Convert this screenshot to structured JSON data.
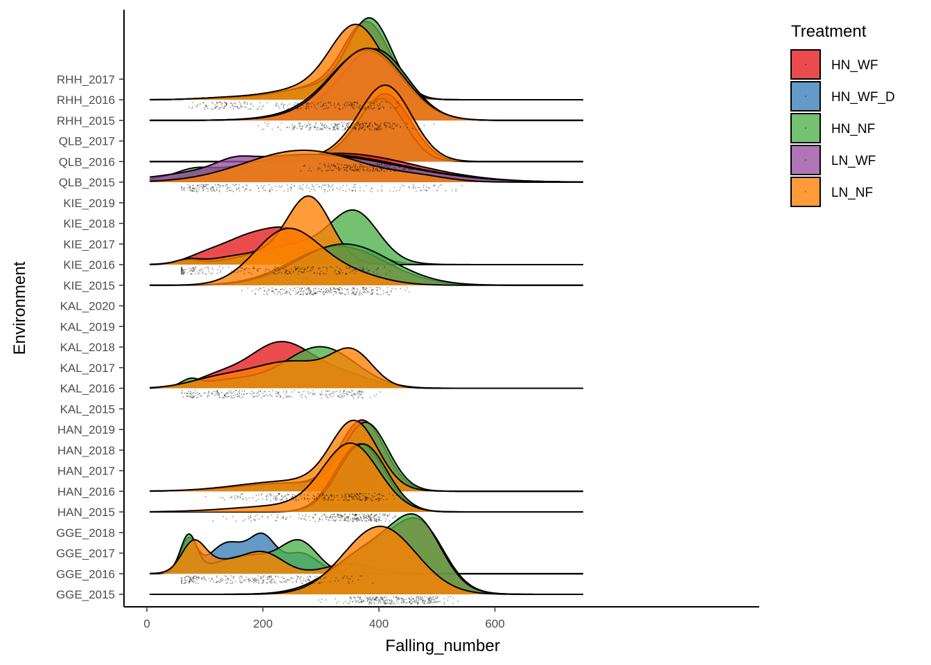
{
  "chart_data": {
    "type": "ridgeline",
    "xlabel": "Falling_number",
    "ylabel": "Environment",
    "xlim": [
      -15,
      762
    ],
    "x_ticks": [
      0,
      200,
      400,
      600
    ],
    "environments": [
      "GGE_2015",
      "GGE_2016",
      "GGE_2017",
      "GGE_2018",
      "HAN_2015",
      "HAN_2016",
      "HAN_2017",
      "HAN_2018",
      "HAN_2019",
      "KAL_2015",
      "KAL_2016",
      "KAL_2017",
      "KAL_2018",
      "KAL_2019",
      "KAL_2020",
      "KIE_2015",
      "KIE_2016",
      "KIE_2017",
      "KIE_2018",
      "KIE_2019",
      "QLB_2015",
      "QLB_2016",
      "QLB_2017",
      "RHH_2015",
      "RHH_2016",
      "RHH_2017"
    ],
    "legend": {
      "title": "Treatment",
      "placement": "right",
      "items": [
        {
          "name": "HN_WF",
          "color": "#E41A1C"
        },
        {
          "name": "HN_WF_D",
          "color": "#377EB8"
        },
        {
          "name": "HN_NF",
          "color": "#4DAF4A"
        },
        {
          "name": "LN_WF",
          "color": "#984EA3"
        },
        {
          "name": "LN_NF",
          "color": "#FF7F00"
        }
      ]
    },
    "line_range": [
      5,
      752
    ],
    "points_range": [
      60,
      600
    ],
    "ridges": [
      {
        "env": "GGE_2015",
        "series": [
          {
            "treatment": "HN_WF",
            "peaks": [
              [
                400,
                70,
                2.4
              ],
              [
                475,
                40,
                2.2
              ]
            ]
          },
          {
            "treatment": "HN_NF",
            "peaks": [
              [
                400,
                70,
                2.4
              ],
              [
                470,
                40,
                2.3
              ]
            ]
          },
          {
            "treatment": "LN_NF",
            "peaks": [
              [
                402,
                62,
                3.3
              ]
            ]
          }
        ]
      },
      {
        "env": "GGE_2016",
        "series": [
          {
            "treatment": "HN_WF_D",
            "peaks": [
              [
                72,
                14,
                1.6
              ],
              [
                140,
                32,
                1.5
              ],
              [
                200,
                22,
                1.6
              ],
              [
                265,
                30,
                1.0
              ]
            ]
          },
          {
            "treatment": "HN_NF",
            "peaks": [
              [
                72,
                14,
                1.75
              ],
              [
                180,
                60,
                0.9
              ],
              [
                265,
                30,
                1.3
              ]
            ]
          },
          {
            "treatment": "LN_NF",
            "peaks": [
              [
                80,
                20,
                1.3
              ],
              [
                200,
                35,
                1.0
              ],
              [
                120,
                40,
                0.55
              ],
              [
                350,
                40,
                0.5
              ]
            ]
          }
        ]
      },
      {
        "env": "HAN_2015",
        "series": [
          {
            "treatment": "HN_WF",
            "peaks": [
              [
                368,
                42,
                3.3
              ]
            ]
          },
          {
            "treatment": "HN_NF",
            "peaks": [
              [
                372,
                42,
                3.3
              ]
            ]
          },
          {
            "treatment": "LN_NF",
            "peaks": [
              [
                352,
                48,
                3.2
              ],
              [
                240,
                90,
                0.3
              ]
            ]
          }
        ]
      },
      {
        "env": "HAN_2016",
        "series": [
          {
            "treatment": "HN_WF",
            "peaks": [
              [
                372,
                38,
                3.3
              ],
              [
                250,
                90,
                0.4
              ]
            ]
          },
          {
            "treatment": "HN_NF",
            "peaks": [
              [
                378,
                38,
                3.2
              ],
              [
                250,
                90,
                0.4
              ]
            ]
          },
          {
            "treatment": "LN_NF",
            "peaks": [
              [
                358,
                40,
                3.2
              ],
              [
                250,
                90,
                0.5
              ]
            ]
          }
        ]
      },
      {
        "env": "KAL_2016",
        "series": [
          {
            "treatment": "HN_WF",
            "peaks": [
              [
                230,
                55,
                2.2
              ],
              [
                120,
                40,
                0.5
              ],
              [
                340,
                50,
                0.6
              ]
            ]
          },
          {
            "treatment": "HN_NF",
            "peaks": [
              [
                300,
                60,
                2.0
              ],
              [
                75,
                15,
                0.3
              ],
              [
                150,
                60,
                0.4
              ]
            ]
          },
          {
            "treatment": "LN_NF",
            "peaks": [
              [
                355,
                35,
                1.5
              ],
              [
                250,
                70,
                1.3
              ],
              [
                120,
                50,
                0.4
              ]
            ]
          }
        ]
      },
      {
        "env": "KIE_2015",
        "series": [
          {
            "treatment": "HN_WF",
            "peaks": [
              [
                330,
                80,
                1.9
              ]
            ]
          },
          {
            "treatment": "HN_NF",
            "peaks": [
              [
                340,
                80,
                2.0
              ]
            ]
          },
          {
            "treatment": "LN_NF",
            "peaks": [
              [
                240,
                55,
                2.6
              ],
              [
                340,
                60,
                0.6
              ]
            ]
          }
        ]
      },
      {
        "env": "KIE_2016",
        "series": [
          {
            "treatment": "HN_WF",
            "peaks": [
              [
                190,
                60,
                1.5
              ],
              [
                255,
                35,
                0.8
              ],
              [
                360,
                40,
                0.7
              ],
              [
                95,
                30,
                0.2
              ]
            ]
          },
          {
            "treatment": "HN_NF",
            "peaks": [
              [
                360,
                40,
                2.1
              ],
              [
                270,
                80,
                1.0
              ],
              [
                70,
                20,
                0.2
              ]
            ]
          },
          {
            "treatment": "LN_NF",
            "peaks": [
              [
                280,
                38,
                3.2
              ],
              [
                180,
                60,
                0.5
              ],
              [
                70,
                20,
                0.2
              ]
            ]
          }
        ]
      },
      {
        "env": "QLB_2015",
        "series": [
          {
            "treatment": "HN_WF",
            "peaks": [
              [
                330,
                130,
                1.4
              ],
              [
                100,
                30,
                0.3
              ]
            ]
          },
          {
            "treatment": "HN_NF",
            "peaks": [
              [
                300,
                140,
                1.35
              ],
              [
                80,
                30,
                0.3
              ]
            ]
          },
          {
            "treatment": "LN_WF",
            "peaks": [
              [
                280,
                150,
                1.35
              ],
              [
                150,
                30,
                0.3
              ]
            ]
          },
          {
            "treatment": "LN_NF",
            "peaks": [
              [
                270,
                100,
                1.55
              ],
              [
                470,
                50,
                0.2
              ]
            ]
          }
        ]
      },
      {
        "env": "QLB_2016",
        "series": [
          {
            "treatment": "HN_WF",
            "peaks": [
              [
                405,
                40,
                3.0
              ],
              [
                450,
                35,
                0.6
              ]
            ]
          },
          {
            "treatment": "HN_NF",
            "peaks": [
              [
                405,
                40,
                3.0
              ],
              [
                330,
                40,
                0.2
              ]
            ]
          },
          {
            "treatment": "LN_WF",
            "peaks": [
              [
                405,
                40,
                3.0
              ],
              [
                330,
                40,
                0.3
              ]
            ]
          },
          {
            "treatment": "LN_NF",
            "peaks": [
              [
                412,
                45,
                3.65
              ],
              [
                330,
                45,
                0.3
              ]
            ]
          }
        ]
      },
      {
        "env": "RHH_2015",
        "series": [
          {
            "treatment": "HN_WF",
            "peaks": [
              [
                395,
                55,
                3.3
              ],
              [
                300,
                70,
                0.4
              ]
            ]
          },
          {
            "treatment": "HN_NF",
            "peaks": [
              [
                395,
                55,
                3.3
              ],
              [
                300,
                70,
                0.4
              ]
            ]
          },
          {
            "treatment": "LN_WF",
            "peaks": [
              [
                382,
                60,
                3.2
              ],
              [
                300,
                70,
                0.4
              ]
            ]
          },
          {
            "treatment": "LN_NF",
            "peaks": [
              [
                384,
                60,
                3.35
              ],
              [
                300,
                70,
                0.3
              ]
            ]
          }
        ]
      },
      {
        "env": "RHH_2016",
        "series": [
          {
            "treatment": "HN_WF",
            "peaks": [
              [
                380,
                40,
                3.6
              ],
              [
                290,
                60,
                0.6
              ],
              [
                140,
                50,
                0.1
              ]
            ]
          },
          {
            "treatment": "HN_NF",
            "peaks": [
              [
                385,
                38,
                3.8
              ],
              [
                290,
                60,
                0.6
              ],
              [
                140,
                50,
                0.1
              ]
            ]
          },
          {
            "treatment": "LN_NF",
            "peaks": [
              [
                362,
                45,
                3.5
              ],
              [
                270,
                60,
                0.5
              ],
              [
                140,
                50,
                0.1
              ]
            ]
          }
        ]
      }
    ]
  }
}
